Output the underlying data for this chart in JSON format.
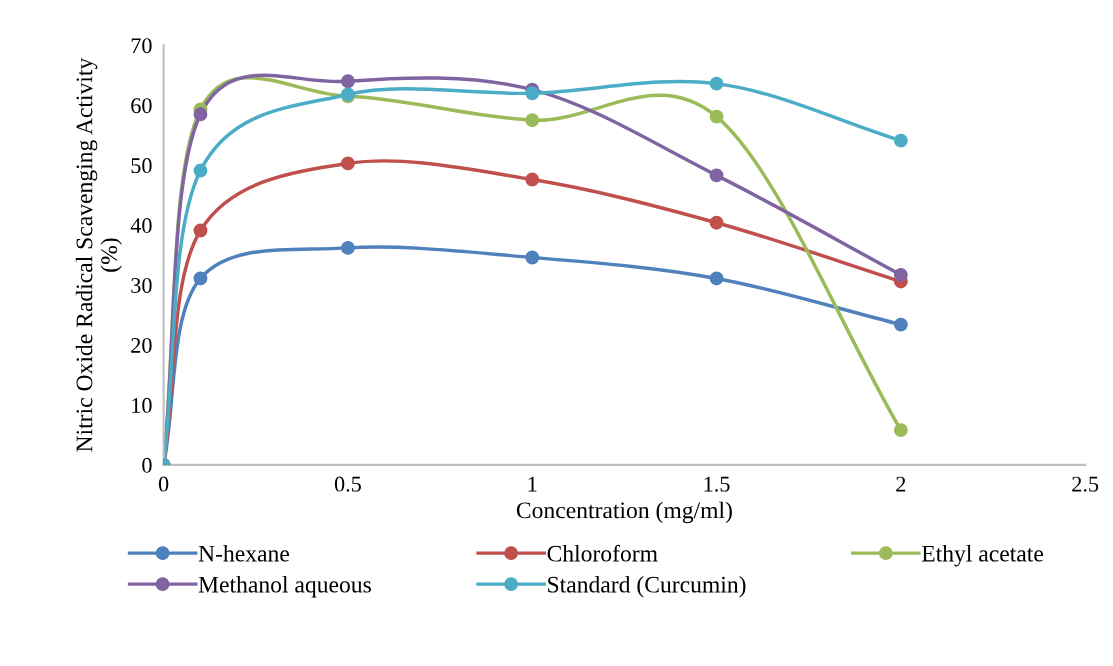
{
  "chart_data": {
    "type": "line",
    "xlabel": "Concentration (mg/ml)",
    "ylabel": "Nitric Oxide Radical Scavenging Activity\n(%)",
    "x": [
      0,
      0.1,
      0.5,
      1,
      1.5,
      2
    ],
    "series": [
      {
        "name": "N-hexane",
        "color": "#4f81bd",
        "values": [
          0,
          31.1,
          36.2,
          34.6,
          31.1,
          23.4
        ]
      },
      {
        "name": "Chloroform",
        "color": "#c0504d",
        "values": [
          0,
          39.1,
          50.3,
          47.6,
          40.4,
          30.6
        ]
      },
      {
        "name": "Ethyl acetate",
        "color": "#9bbb59",
        "values": [
          0,
          59.3,
          61.5,
          57.5,
          58.1,
          5.8
        ]
      },
      {
        "name": "Methanol aqueous",
        "color": "#8064a2",
        "values": [
          0,
          58.5,
          64.0,
          62.6,
          48.3,
          31.7
        ]
      },
      {
        "name": "Standard (Curcumin)",
        "color": "#4bacc6",
        "values": [
          0,
          49.1,
          61.8,
          62.0,
          63.6,
          54.1
        ]
      }
    ],
    "xlim": [
      0,
      2.5
    ],
    "xticks": [
      0,
      0.5,
      1,
      1.5,
      2,
      2.5
    ],
    "ylim": [
      0,
      70
    ],
    "yticks": [
      0,
      10,
      20,
      30,
      40,
      50,
      60,
      70
    ],
    "grid": false,
    "legend": "bottom",
    "marker": "circle",
    "line_style": "solid"
  }
}
